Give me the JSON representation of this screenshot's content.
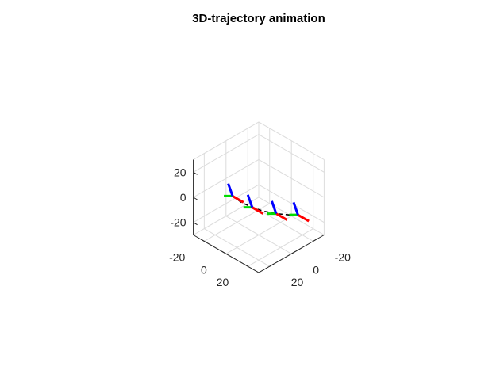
{
  "chart_data": {
    "type": "line",
    "title": "3D-trajectory animation",
    "xlabel": "",
    "ylabel": "",
    "zlabel": "",
    "xlim": [
      -30,
      30
    ],
    "ylim": [
      -30,
      30
    ],
    "zlim": [
      -30,
      30
    ],
    "x_ticks": [
      "-20",
      "0",
      "20"
    ],
    "y_ticks": [
      "-20",
      "0",
      "20"
    ],
    "z_ticks": [
      "-20",
      "0",
      "20"
    ],
    "grid": true,
    "projection": "3d-isometric",
    "trajectory": {
      "x": [
        -12,
        -8,
        -3,
        2,
        8,
        14,
        18
      ],
      "y": [
        12,
        8,
        3,
        -2,
        -8,
        -14,
        -18
      ],
      "z": [
        1,
        -4,
        -8,
        -11,
        -13,
        -14,
        -14
      ]
    },
    "body_frames": [
      {
        "x": -12,
        "y": 12,
        "z": 1
      },
      {
        "x": -3,
        "y": 3,
        "z": -8
      },
      {
        "x": 8,
        "y": -8,
        "z": -13
      },
      {
        "x": 18,
        "y": -18,
        "z": -14
      }
    ],
    "frame_axis_colors": {
      "x": "#ff0000",
      "y": "#00dd00",
      "z": "#0000ff"
    }
  }
}
